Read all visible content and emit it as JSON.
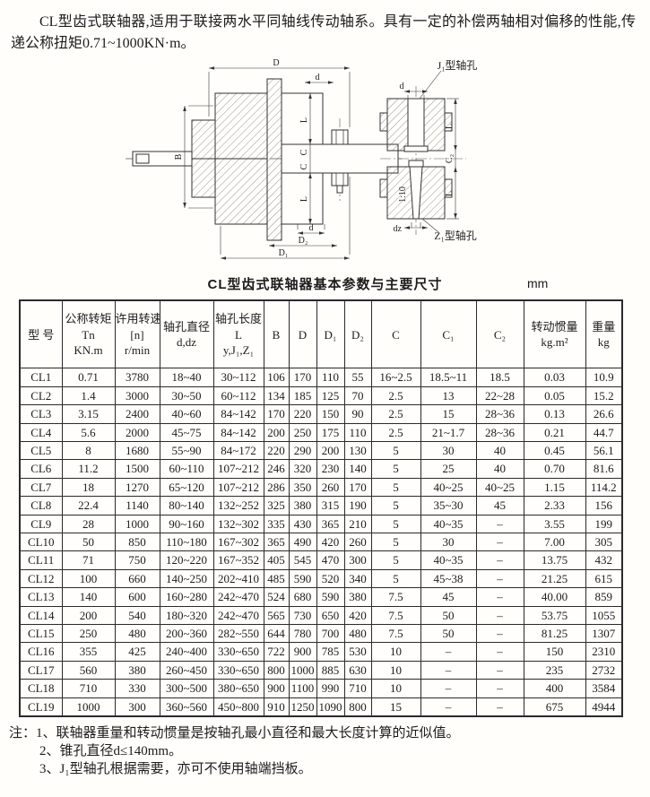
{
  "intro": {
    "text": "CL型齿式联轴器,适用于联接两水平同轴线传动轴系。具有一定的补偿两轴相对偏移的性能,传递公称扭矩0.71~1000KN·m。"
  },
  "drawing": {
    "labels": {
      "D": "D",
      "d": "d",
      "B": "B",
      "L": "L",
      "C": "C",
      "D1": "D₁",
      "D2": "D₂",
      "C2": "C₂",
      "dz": "dz",
      "taper": "1:10"
    },
    "callouts": {
      "j1": "J₁型轴孔",
      "z1": "Z₁型轴孔"
    }
  },
  "table": {
    "title": "CL型齿式联轴器基本参数与主要尺寸",
    "unit": "mm",
    "columns": [
      {
        "id": "model",
        "lines": [
          "型 号"
        ]
      },
      {
        "id": "torque",
        "lines": [
          "公称转矩",
          "Tn",
          "KN.m"
        ]
      },
      {
        "id": "speed",
        "lines": [
          "许用转速",
          "[n]",
          "r/min"
        ]
      },
      {
        "id": "bore-dia",
        "lines": [
          "轴孔直径",
          "d,dz"
        ]
      },
      {
        "id": "bore-len",
        "lines": [
          "轴孔长度",
          "L",
          "y,J₁,Z₁"
        ]
      },
      {
        "id": "B",
        "lines": [
          "B"
        ]
      },
      {
        "id": "D",
        "lines": [
          "D"
        ]
      },
      {
        "id": "D1",
        "lines": [
          "D₁"
        ]
      },
      {
        "id": "D2",
        "lines": [
          "D₂"
        ]
      },
      {
        "id": "C",
        "lines": [
          "C"
        ]
      },
      {
        "id": "C1",
        "lines": [
          "C₁"
        ]
      },
      {
        "id": "C2",
        "lines": [
          "C₂"
        ]
      },
      {
        "id": "inertia",
        "lines": [
          "转动惯量",
          "kg.m²"
        ]
      },
      {
        "id": "weight",
        "lines": [
          "重量",
          "kg"
        ]
      }
    ],
    "rows": [
      [
        "CL1",
        "0.71",
        "3780",
        "18~40",
        "30~112",
        "106",
        "170",
        "110",
        "55",
        "16~2.5",
        "18.5~11",
        "18.5",
        "0.03",
        "10.9"
      ],
      [
        "CL2",
        "1.4",
        "3000",
        "30~50",
        "60~112",
        "134",
        "185",
        "125",
        "70",
        "2.5",
        "13",
        "22~28",
        "0.05",
        "15.2"
      ],
      [
        "CL3",
        "3.15",
        "2400",
        "40~60",
        "84~142",
        "170",
        "220",
        "150",
        "90",
        "2.5",
        "15",
        "28~36",
        "0.13",
        "26.6"
      ],
      [
        "CL4",
        "5.6",
        "2000",
        "45~75",
        "84~142",
        "200",
        "250",
        "175",
        "110",
        "2.5",
        "21~1.7",
        "28~36",
        "0.21",
        "44.7"
      ],
      [
        "CL5",
        "8",
        "1680",
        "55~90",
        "84~172",
        "220",
        "290",
        "200",
        "130",
        "5",
        "30",
        "40",
        "0.45",
        "56.1"
      ],
      [
        "CL6",
        "11.2",
        "1500",
        "60~110",
        "107~212",
        "246",
        "320",
        "230",
        "140",
        "5",
        "25",
        "40",
        "0.70",
        "81.6"
      ],
      [
        "CL7",
        "18",
        "1270",
        "65~120",
        "107~212",
        "286",
        "350",
        "260",
        "170",
        "5",
        "40~25",
        "40~25",
        "1.15",
        "114.2"
      ],
      [
        "CL8",
        "22.4",
        "1140",
        "80~140",
        "132~252",
        "325",
        "380",
        "315",
        "190",
        "5",
        "35~30",
        "45",
        "2.33",
        "156"
      ],
      [
        "CL9",
        "28",
        "1000",
        "90~160",
        "132~302",
        "335",
        "430",
        "365",
        "210",
        "5",
        "40~35",
        "–",
        "3.55",
        "199"
      ],
      [
        "CL10",
        "50",
        "850",
        "110~180",
        "167~302",
        "365",
        "490",
        "420",
        "260",
        "5",
        "30",
        "–",
        "7.00",
        "305"
      ],
      [
        "CL11",
        "71",
        "750",
        "120~220",
        "167~352",
        "405",
        "545",
        "470",
        "300",
        "5",
        "40~35",
        "–",
        "13.75",
        "432"
      ],
      [
        "CL12",
        "100",
        "660",
        "140~250",
        "202~410",
        "485",
        "590",
        "520",
        "340",
        "5",
        "45~38",
        "–",
        "21.25",
        "615"
      ],
      [
        "CL13",
        "140",
        "600",
        "160~280",
        "242~470",
        "524",
        "680",
        "590",
        "380",
        "7.5",
        "45",
        "–",
        "40.00",
        "859"
      ],
      [
        "CL14",
        "200",
        "540",
        "180~320",
        "242~470",
        "565",
        "730",
        "650",
        "420",
        "7.5",
        "50",
        "–",
        "53.75",
        "1055"
      ],
      [
        "CL15",
        "250",
        "480",
        "200~360",
        "282~550",
        "644",
        "780",
        "700",
        "480",
        "7.5",
        "50",
        "–",
        "81.25",
        "1307"
      ],
      [
        "CL16",
        "355",
        "425",
        "240~400",
        "330~650",
        "722",
        "900",
        "785",
        "530",
        "10",
        "–",
        "–",
        "150",
        "2310"
      ],
      [
        "CL17",
        "560",
        "380",
        "260~450",
        "330~650",
        "800",
        "1000",
        "885",
        "630",
        "10",
        "–",
        "–",
        "235",
        "2732"
      ],
      [
        "CL18",
        "710",
        "330",
        "300~500",
        "380~650",
        "900",
        "1100",
        "990",
        "710",
        "10",
        "–",
        "–",
        "400",
        "3584"
      ],
      [
        "CL19",
        "1000",
        "300",
        "360~560",
        "450~800",
        "910",
        "1250",
        "1090",
        "800",
        "15",
        "–",
        "–",
        "675",
        "4944"
      ]
    ]
  },
  "notes": {
    "prefix": "注：",
    "items": [
      "1、联轴器重量和转动惯量是按轴孔最小直径和最大长度计算的近似值。",
      "2、锥孔直径d≤140mm。",
      "3、J₁型轴孔根据需要，亦可不使用轴端挡板。"
    ]
  }
}
